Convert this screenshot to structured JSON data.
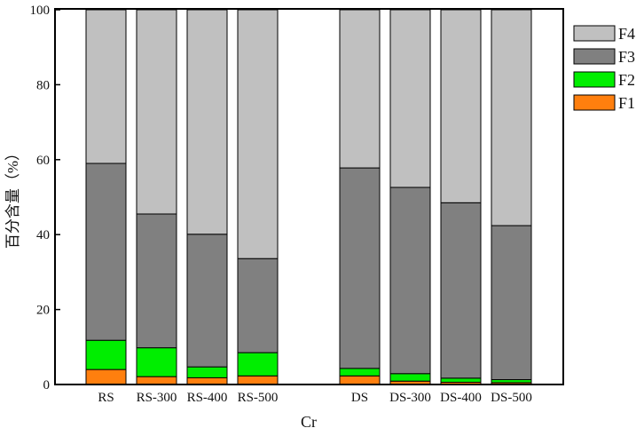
{
  "chart_data": {
    "type": "bar",
    "stacked": true,
    "categories": [
      "RS",
      "RS-300",
      "RS-400",
      "RS-500",
      "DS",
      "DS-300",
      "DS-400",
      "DS-500"
    ],
    "series": [
      {
        "name": "F1",
        "color": "#ff7f0e",
        "values": [
          4.0,
          2.1,
          1.8,
          2.3,
          2.3,
          0.9,
          0.6,
          0.5
        ]
      },
      {
        "name": "F2",
        "color": "#00ee00",
        "values": [
          7.8,
          7.7,
          2.9,
          6.2,
          2.0,
          2.0,
          1.1,
          0.8
        ]
      },
      {
        "name": "F3",
        "color": "#808080",
        "values": [
          47.2,
          35.7,
          35.4,
          25.1,
          53.5,
          49.7,
          46.8,
          41.1
        ]
      },
      {
        "name": "F4",
        "color": "#c0c0c0",
        "values": [
          41.0,
          54.5,
          59.9,
          66.4,
          42.2,
          47.4,
          51.5,
          57.6
        ]
      }
    ],
    "xlabel": "Cr",
    "ylabel": "百分含量（%）",
    "ylim": [
      0,
      100
    ],
    "yticks": [
      "0",
      "20",
      "40",
      "60",
      "80",
      "100"
    ],
    "legend": {
      "placement": "right-top",
      "entries": [
        "F4",
        "F3",
        "F2",
        "F1"
      ]
    },
    "grid": false
  }
}
